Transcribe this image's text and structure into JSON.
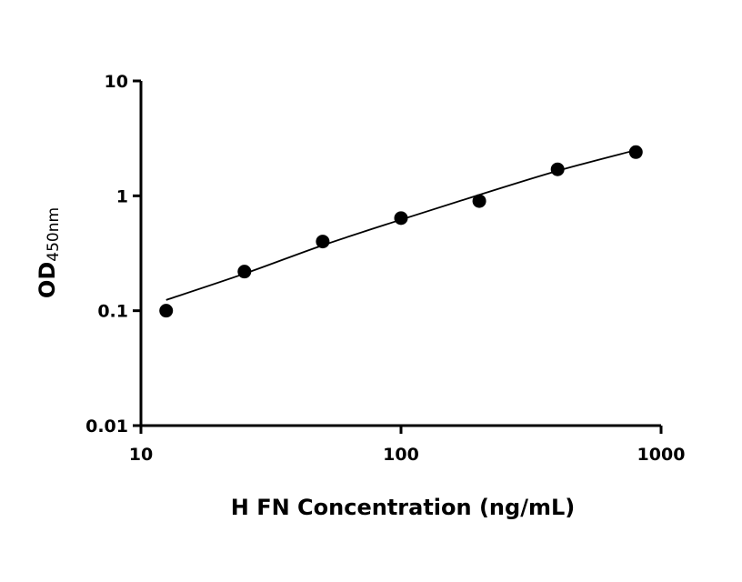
{
  "chart_data": {
    "type": "scatter",
    "xlabel": "H FN Concentration (ng/mL)",
    "ylabel": "OD",
    "ylabel_sub": "450nm",
    "xlog": true,
    "ylog": true,
    "xlim": [
      10,
      1000
    ],
    "ylim": [
      0.01,
      10
    ],
    "xticks": [
      10,
      100,
      1000
    ],
    "yticks": [
      0.01,
      0.1,
      1,
      10
    ],
    "color": "#000000",
    "x": [
      12.5,
      25,
      50,
      100,
      200,
      400,
      800
    ],
    "values": [
      0.1,
      0.219,
      0.4,
      0.64,
      0.9,
      1.7,
      2.4
    ],
    "fit": {
      "x": [
        12.5,
        25,
        50,
        100,
        200,
        400,
        800
      ],
      "values": [
        0.124,
        0.21,
        0.371,
        0.62,
        1.02,
        1.65,
        2.5
      ]
    }
  }
}
